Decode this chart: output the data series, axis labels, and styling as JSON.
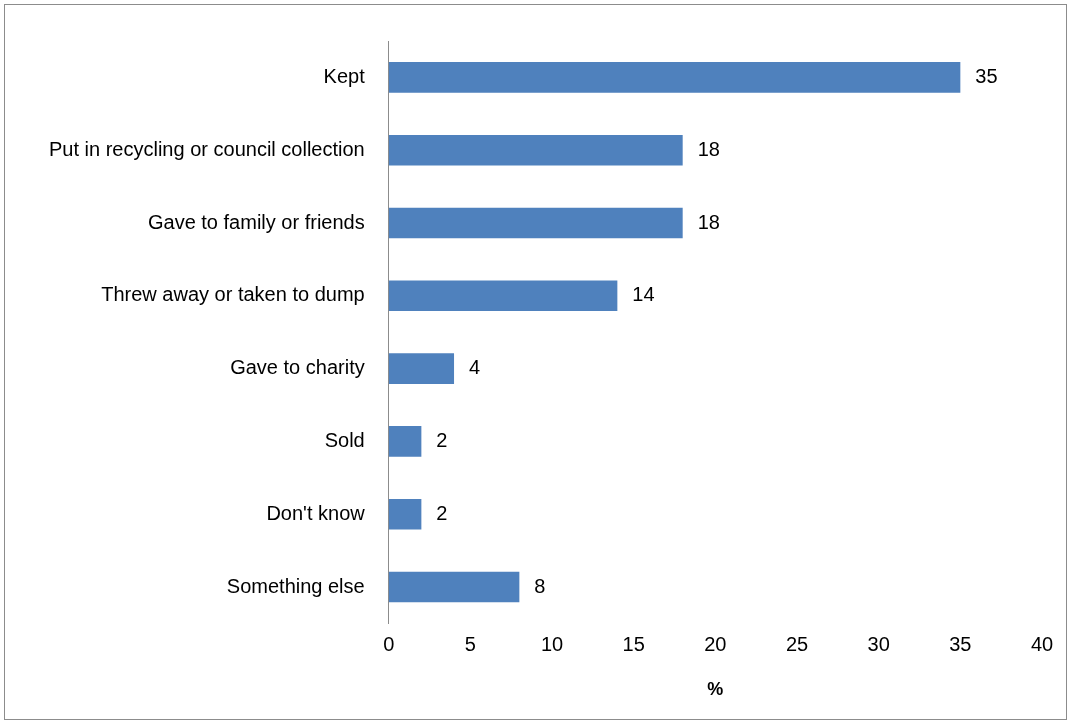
{
  "chart_data": {
    "type": "bar",
    "orientation": "horizontal",
    "xlabel": "%",
    "categories": [
      "Kept",
      "Put in recycling or council collection",
      "Gave to family or friends",
      "Threw away or taken to dump",
      "Gave to charity",
      "Sold",
      "Don't know",
      "Something else"
    ],
    "values": [
      35,
      18,
      18,
      14,
      4,
      2,
      2,
      8
    ],
    "color": "#4f81bd",
    "xlim": [
      0,
      40
    ],
    "xticks": [
      0,
      5,
      10,
      15,
      20,
      25,
      30,
      35,
      40
    ],
    "grid": false,
    "legend": false,
    "data_labels": true
  }
}
